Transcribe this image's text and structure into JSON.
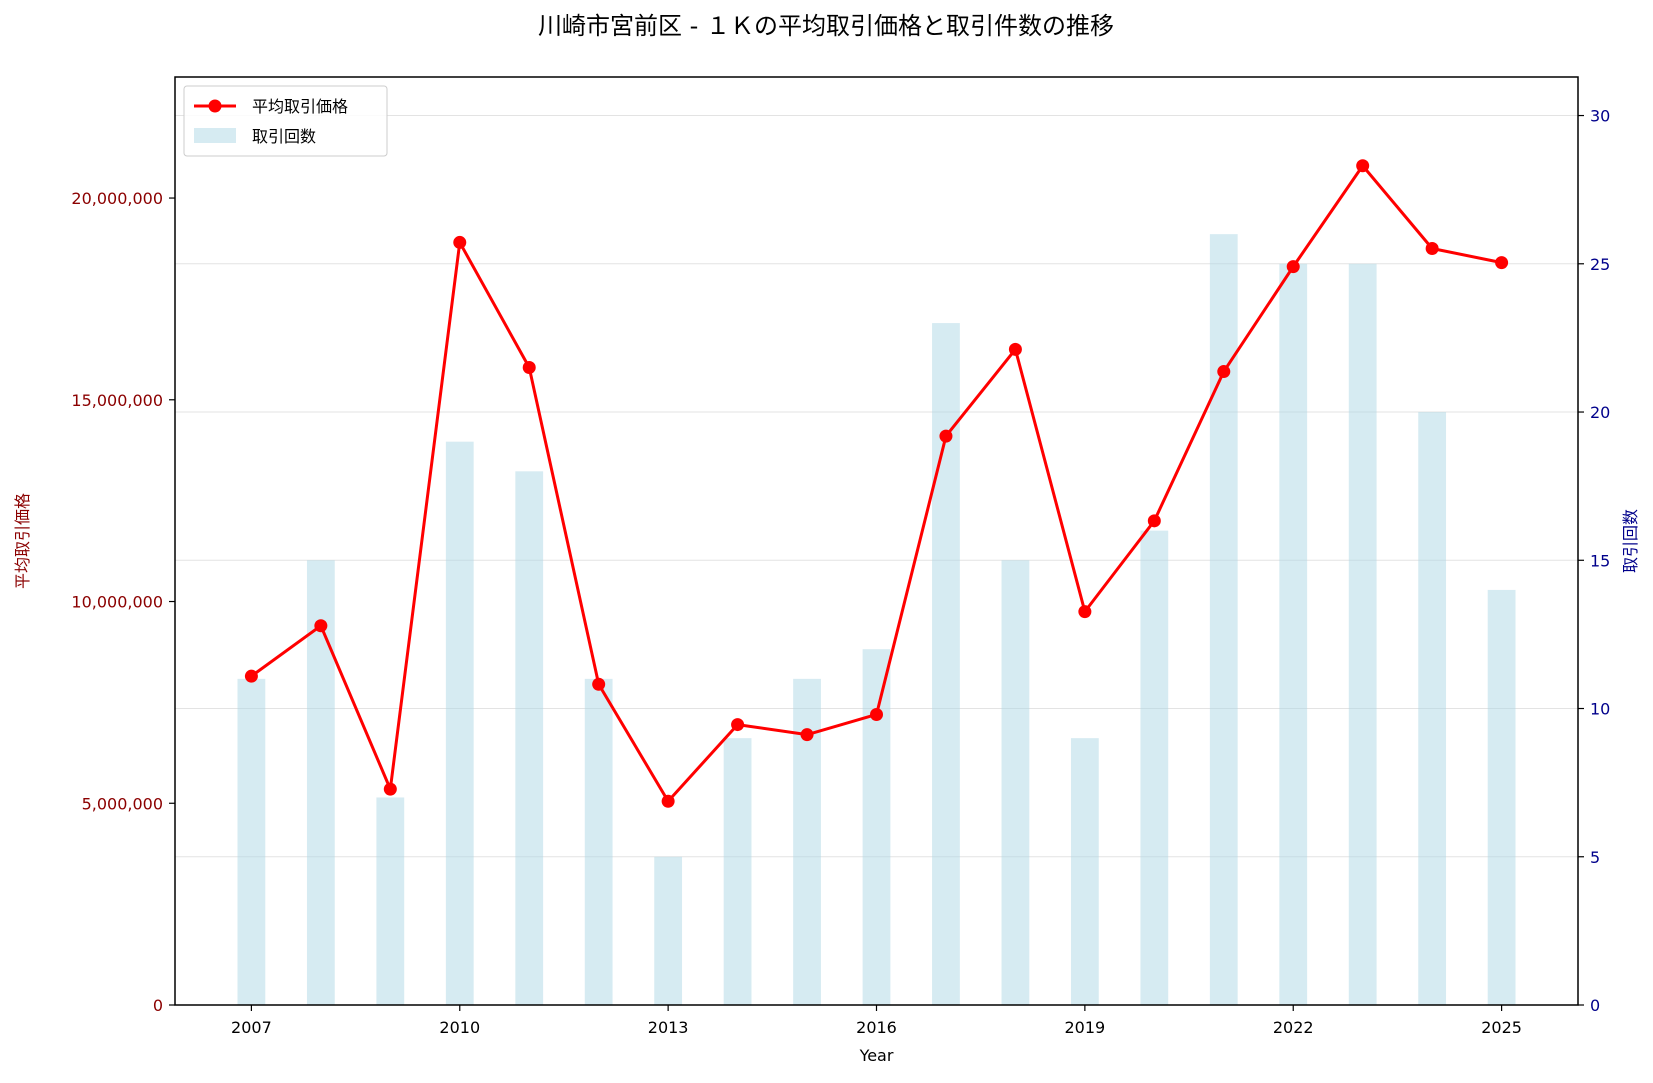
{
  "chart_data": {
    "type": "bar+line",
    "title": "川崎市宮前区 - １Ｋの平均取引価格と取引件数の推移",
    "xlabel": "Year",
    "ylabel_left": "平均取引価格",
    "ylabel_right": "取引回数",
    "x": [
      2007,
      2008,
      2009,
      2010,
      2011,
      2012,
      2013,
      2014,
      2015,
      2016,
      2017,
      2018,
      2019,
      2020,
      2021,
      2022,
      2023,
      2024,
      2025
    ],
    "x_ticks": [
      "2007",
      "2010",
      "2013",
      "2016",
      "2019",
      "2022",
      "2025"
    ],
    "xlim": [
      2005.9,
      2026.1
    ],
    "left_axis": {
      "ylim": [
        0,
        23000000
      ],
      "ticks": [
        0,
        5000000,
        10000000,
        15000000,
        20000000
      ],
      "tick_labels": [
        "0",
        "5,000,000",
        "10,000,000",
        "15,000,000",
        "20,000,000"
      ],
      "color": "#8b0000"
    },
    "right_axis": {
      "ylim": [
        0,
        31.3
      ],
      "ticks": [
        0,
        5,
        10,
        15,
        20,
        25,
        30
      ],
      "tick_labels": [
        "0",
        "5",
        "10",
        "15",
        "20",
        "25",
        "30"
      ],
      "color": "#00008b"
    },
    "series": [
      {
        "name": "平均取引価格",
        "kind": "line",
        "axis": "left",
        "color": "#ff0000",
        "values": [
          8150000,
          9400000,
          5350000,
          18900000,
          15800000,
          7950000,
          5050000,
          6950000,
          6700000,
          7200000,
          14100000,
          16250000,
          9750000,
          12000000,
          15700000,
          18300000,
          20800000,
          18750000,
          18400000
        ]
      },
      {
        "name": "取引回数",
        "kind": "bar",
        "axis": "right",
        "color": "#add8e6",
        "values": [
          11,
          15,
          7,
          19,
          18,
          11,
          5,
          9,
          11,
          12,
          23,
          15,
          9,
          16,
          26,
          25,
          25,
          20,
          14
        ]
      }
    ],
    "grid": true,
    "legend_position": "top-left"
  }
}
